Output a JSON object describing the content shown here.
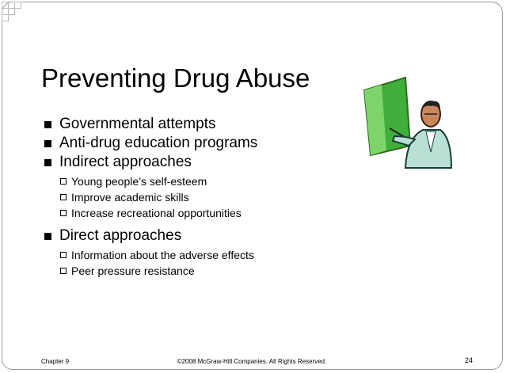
{
  "slide": {
    "title": "Preventing Drug Abuse",
    "bullets": [
      {
        "text": "Governmental attempts"
      },
      {
        "text": "Anti-drug education programs"
      },
      {
        "text": "Indirect approaches",
        "sub": [
          "Young people’s self-esteem",
          "Improve academic skills",
          "Increase recreational opportunities"
        ]
      },
      {
        "text": "Direct approaches",
        "sub": [
          "Information about the adverse effects",
          "Peer pressure resistance"
        ]
      }
    ]
  },
  "footer": {
    "left": "Chapter 9",
    "center": "©2008 McGraw-Hill Companies. All Rights Reserved.",
    "right": "24"
  }
}
